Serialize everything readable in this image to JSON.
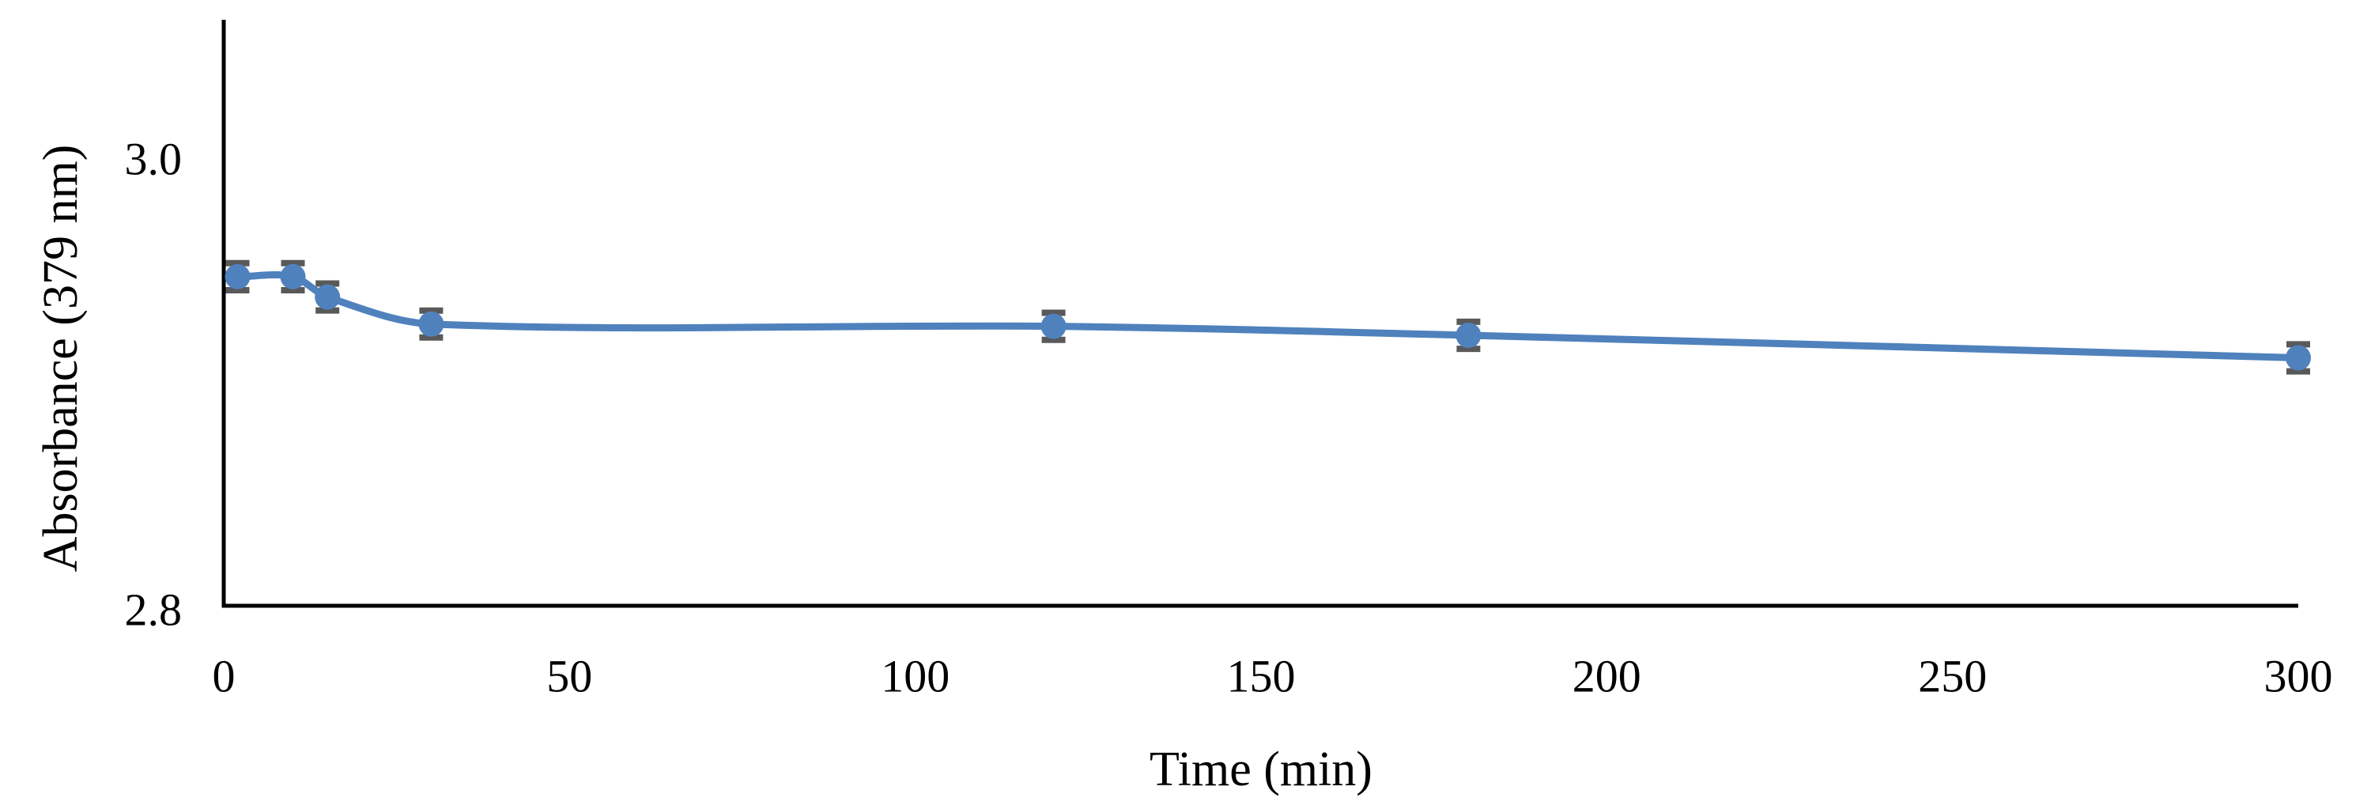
{
  "page": {
    "background": "#ffffff"
  },
  "chart_data": {
    "type": "line",
    "title": "",
    "xlabel": "Time (min)",
    "ylabel": "Absorbance (379 nm)",
    "x": [
      2,
      10,
      15,
      30,
      120,
      180,
      300
    ],
    "series": [
      {
        "name": "Absorbance (379 nm)",
        "values": [
          2.946,
          2.946,
          2.937,
          2.925,
          2.924,
          2.92,
          2.91
        ],
        "error_y": [
          0.006,
          0.006,
          0.006,
          0.006,
          0.006,
          0.006,
          0.006
        ],
        "color": "#4F81BD",
        "marker": "circle",
        "smooth": true
      }
    ],
    "x_ticks": [
      {
        "value": 0,
        "label": "0"
      },
      {
        "value": 50,
        "label": "50"
      },
      {
        "value": 100,
        "label": "100"
      },
      {
        "value": 150,
        "label": "150"
      },
      {
        "value": 200,
        "label": "200"
      },
      {
        "value": 250,
        "label": "250"
      },
      {
        "value": 300,
        "label": "300"
      }
    ],
    "y_ticks": [
      {
        "value": 2.8,
        "label": "2.8"
      },
      {
        "value": 3.0,
        "label": "3.0"
      }
    ],
    "xlim": [
      0,
      300
    ],
    "ylim": [
      2.8,
      3.06
    ],
    "grid": false,
    "legend": "none",
    "axis_color": "#000000",
    "error_bar_color": "#595959"
  }
}
